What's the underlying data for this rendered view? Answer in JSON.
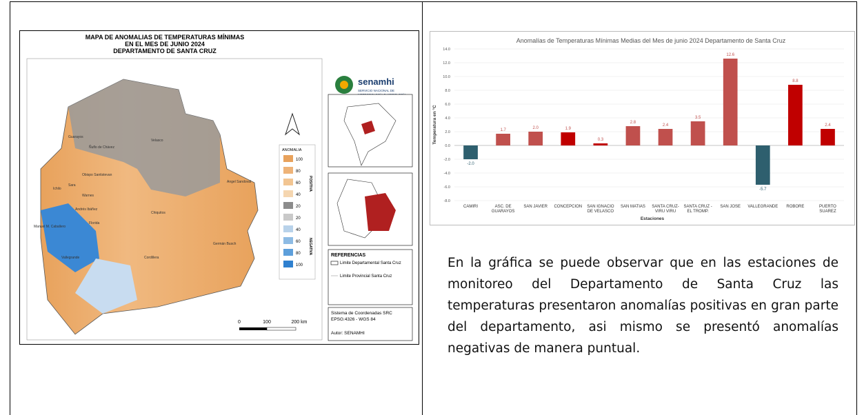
{
  "map": {
    "title": [
      "MAPA DE ANOMALIAS DE TEMPERATURAS MÍNIMAS",
      "EN EL MES DE JUNIO 2024",
      "DEPARTAMENTO DE SANTA CRUZ"
    ],
    "logo": "senamhi",
    "logo_sub": [
      "SERVICIO NACIONAL DE",
      "METEOROLOGÍA E HIDROLOGÍA"
    ],
    "legend_title": "ANOMALIA",
    "legend_positive": "POSITIVA",
    "legend_negative": "NEGATIVA",
    "legend_items": [
      {
        "label": "100",
        "color": "#e8a25c"
      },
      {
        "label": "80",
        "color": "#eeb378"
      },
      {
        "label": "60",
        "color": "#f2c592"
      },
      {
        "label": "40",
        "color": "#f5d6b0"
      },
      {
        "label": "20",
        "color": "#8c8c8c"
      },
      {
        "label": "20",
        "color": "#c9c9c9"
      },
      {
        "label": "40",
        "color": "#b8d2ea"
      },
      {
        "label": "60",
        "color": "#8dbbe4"
      },
      {
        "label": "80",
        "color": "#5d9fdb"
      },
      {
        "label": "100",
        "color": "#2f80cf"
      }
    ],
    "references_title": "REFERENCIAS",
    "references": [
      "Limite Departamental Santa Cruz",
      "Limite Provincial Santa Cruz"
    ],
    "crs": [
      "Sistema de Coordenadas SRC",
      "EPSG:4326 - WGS 84"
    ],
    "author": "Autor: SENAMHI",
    "scale": [
      "0",
      "100",
      "200 km"
    ],
    "places": [
      "Guarayos",
      "Ñuflo de Chávez",
      "Velasco",
      "Ichilo",
      "Sara",
      "Obispo Santistevan",
      "Andrés Ibáñez",
      "Warnes",
      "Chiquitos",
      "Angel Sandoval",
      "Cordillera",
      "Germán Busch",
      "Vallegrande",
      "Florida",
      "Manuel M. Caballero"
    ]
  },
  "chart_data": {
    "type": "bar",
    "title": "Anomalías de Temperaturas Mínimas Medias del Mes de junio 2024 Departamento de Santa Cruz",
    "x_label": "Estaciones",
    "y_label": "Temperatura en °C",
    "categories": [
      "CAMIRI",
      "ASC. DE GUARAYOS",
      "SAN JAVIER",
      "CONCEPCION",
      "SAN IGNACIO DE VELASCO",
      "SAN MATIAS",
      "SANTA CRUZ- VIRU VIRU",
      "SANTA CRUZ - EL TROMP.",
      "SAN JOSE",
      "VALLEGRANDE",
      "ROBORE",
      "PUERTO SUAREZ"
    ],
    "values": [
      -2.0,
      1.7,
      2.0,
      1.9,
      0.3,
      2.8,
      2.4,
      3.5,
      12.6,
      -5.7,
      8.8,
      2.4
    ],
    "value_labels": [
      "-2.0",
      "1.7",
      "2.0",
      "1.9",
      "0.3",
      "2.8",
      "2.4",
      "3.5",
      "12.6",
      "-5.7",
      "8.8",
      "2.4"
    ],
    "colors": [
      "#2e5f6e",
      "#c0504d",
      "#c0504d",
      "#c00000",
      "#c00000",
      "#c0504d",
      "#c0504d",
      "#c0504d",
      "#c0504d",
      "#2e5f6e",
      "#c00000",
      "#c00000"
    ],
    "ylim": [
      -8,
      14
    ],
    "yticks": [
      {
        "value": -8,
        "label": "-8.0"
      },
      {
        "value": -6,
        "label": "-6.0"
      },
      {
        "value": -4,
        "label": "-4.0"
      },
      {
        "value": -2,
        "label": "-2.0"
      },
      {
        "value": 0,
        "label": "0.0"
      },
      {
        "value": 2,
        "label": "2.0"
      },
      {
        "value": 4,
        "label": "4.0"
      },
      {
        "value": 6,
        "label": "6.0"
      },
      {
        "value": 8,
        "label": "8.0"
      },
      {
        "value": 10,
        "label": "10.0"
      },
      {
        "value": 12,
        "label": "12.0"
      },
      {
        "value": 14,
        "label": "14.0"
      }
    ],
    "grid": true
  },
  "paragraph": "En la gráfica se puede observar que en las estaciones de monitoreo del Departamento de Santa Cruz las temperaturas presentaron anomalías positivas en gran parte del departamento, asi mismo se presentó anomalías negativas de manera puntual."
}
